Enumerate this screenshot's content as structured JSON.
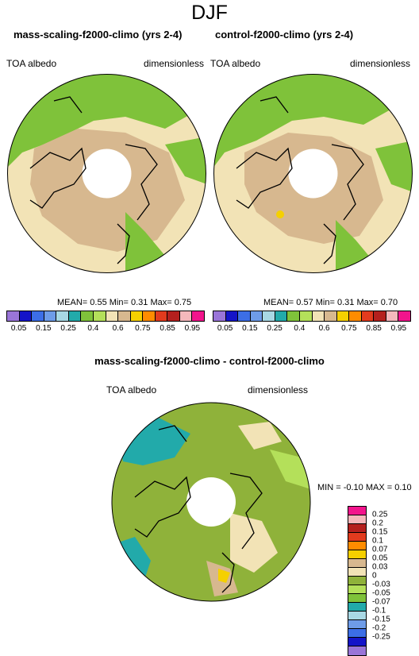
{
  "title": "DJF",
  "palette_main": [
    "#9a75d8",
    "#1414c8",
    "#3c6ee6",
    "#6e9ce8",
    "#a8d8e4",
    "#22aaaa",
    "#7fc23a",
    "#b4e05a",
    "#f2e3b6",
    "#d7b88f",
    "#f5d000",
    "#ff8c00",
    "#e23b1e",
    "#b4201e",
    "#f4b8bc",
    "#f2148c"
  ],
  "palette_diff": [
    "#9a75d8",
    "#1414c8",
    "#3c6ee6",
    "#6e9ce8",
    "#a8d8e4",
    "#22aaaa",
    "#7fc23a",
    "#b4e05a",
    "#8fb23a",
    "#f2e3b6",
    "#d7b88f",
    "#f5d000",
    "#ff8c00",
    "#e23b1e",
    "#b4201e",
    "#f4b8bc",
    "#f2148c"
  ],
  "panels": [
    {
      "title": "mass-scaling-f2000-climo (yrs 2-4)",
      "left_label": "TOA albedo",
      "right_label": "dimensionless",
      "mean_label": "MEAN=",
      "mean": "0.55",
      "min_label": "Min=",
      "min": "0.31",
      "max_label": "Max=",
      "max": "0.75"
    },
    {
      "title": "control-f2000-climo (yrs 2-4)",
      "left_label": "TOA albedo",
      "right_label": "dimensionless",
      "mean_label": "MEAN=",
      "mean": "0.57",
      "min_label": "Min=",
      "min": "0.31",
      "max_label": "Max=",
      "max": "0.70"
    },
    {
      "title": "mass-scaling-f2000-climo - control-f2000-climo",
      "left_label": "TOA albedo",
      "right_label": "dimensionless",
      "minmax_label": "MIN =  -0.10 MAX =  0.10"
    }
  ],
  "chart_data": [
    {
      "type": "heatmap",
      "title": "mass-scaling-f2000-climo (yrs 2-4)",
      "variable": "TOA albedo",
      "units": "dimensionless",
      "projection": "polar stereographic (North)",
      "mean": 0.55,
      "min": 0.31,
      "max": 0.75,
      "colorbar_levels": [
        "0.05",
        "0.1",
        "0.15",
        "0.2",
        "0.25",
        "0.3",
        "0.4",
        "0.5",
        "0.6",
        "0.7",
        "0.75",
        "0.8",
        "0.85",
        "0.9",
        "0.95"
      ],
      "colorbar_tick_labels": [
        "0.05",
        "0.15",
        "0.25",
        "0.4",
        "0.6",
        "0.75",
        "0.85",
        "0.95"
      ]
    },
    {
      "type": "heatmap",
      "title": "control-f2000-climo (yrs 2-4)",
      "variable": "TOA albedo",
      "units": "dimensionless",
      "projection": "polar stereographic (North)",
      "mean": 0.57,
      "min": 0.31,
      "max": 0.7,
      "colorbar_levels": [
        "0.05",
        "0.1",
        "0.15",
        "0.2",
        "0.25",
        "0.3",
        "0.4",
        "0.5",
        "0.6",
        "0.7",
        "0.75",
        "0.8",
        "0.85",
        "0.9",
        "0.95"
      ],
      "colorbar_tick_labels": [
        "0.05",
        "0.15",
        "0.25",
        "0.4",
        "0.6",
        "0.75",
        "0.85",
        "0.95"
      ]
    },
    {
      "type": "heatmap",
      "title": "mass-scaling-f2000-climo - control-f2000-climo",
      "variable": "TOA albedo",
      "units": "dimensionless",
      "projection": "polar stereographic (North)",
      "min": -0.1,
      "max": 0.1,
      "colorbar_tick_labels": [
        "0.25",
        "0.2",
        "0.15",
        "0.1",
        "0.07",
        "0.05",
        "0.03",
        "0",
        "-0.03",
        "-0.05",
        "-0.07",
        "-0.1",
        "-0.15",
        "-0.2",
        "-0.25"
      ]
    }
  ]
}
